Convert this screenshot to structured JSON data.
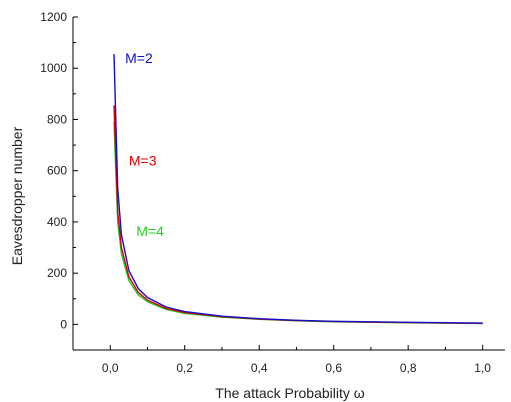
{
  "chart_data": {
    "type": "line",
    "xlabel": "The attack Probability ω",
    "ylabel": "Eavesdropper number",
    "xlim": [
      -0.1,
      1.06
    ],
    "ylim": [
      -100,
      1200
    ],
    "x_ticks": [
      "0,0",
      "0,2",
      "0,4",
      "0,6",
      "0,8",
      "1,0"
    ],
    "x_tick_values": [
      0.0,
      0.2,
      0.4,
      0.6,
      0.8,
      1.0
    ],
    "y_ticks": [
      "0",
      "200",
      "400",
      "600",
      "800",
      "1000",
      "1200"
    ],
    "y_tick_values": [
      0,
      200,
      400,
      600,
      800,
      1000,
      1200
    ],
    "grid": false,
    "legend": "none",
    "series": [
      {
        "name": "M=2",
        "color": "#1010c8",
        "x": [
          0.01,
          0.02,
          0.03,
          0.05,
          0.075,
          0.1,
          0.15,
          0.2,
          0.3,
          0.4,
          0.5,
          0.6,
          0.8,
          1.0
        ],
        "y": [
          1055,
          530,
          350,
          210,
          140,
          105,
          68,
          50,
          32,
          22,
          16,
          12,
          8,
          5
        ]
      },
      {
        "name": "M=3",
        "color": "#e00000",
        "x": [
          0.01,
          0.02,
          0.03,
          0.05,
          0.075,
          0.1,
          0.15,
          0.2,
          0.3,
          0.4,
          0.5,
          0.6,
          0.8,
          1.0
        ],
        "y": [
          855,
          440,
          300,
          185,
          125,
          95,
          62,
          46,
          30,
          21,
          15,
          11,
          7,
          4
        ]
      },
      {
        "name": "M=4",
        "color": "#20d020",
        "x": [
          0.01,
          0.02,
          0.03,
          0.05,
          0.075,
          0.1,
          0.15,
          0.2,
          0.3,
          0.4,
          0.5,
          0.6,
          0.8,
          1.0
        ],
        "y": [
          790,
          400,
          275,
          170,
          115,
          88,
          58,
          43,
          28,
          20,
          14,
          10,
          6,
          4
        ]
      }
    ],
    "annotations": [
      {
        "text": "M=2",
        "color": "#1010c8",
        "x": 0.04,
        "y": 1020
      },
      {
        "text": "M=3",
        "color": "#e00000",
        "x": 0.05,
        "y": 620
      },
      {
        "text": "M=4",
        "color": "#20d020",
        "x": 0.07,
        "y": 345
      }
    ]
  }
}
